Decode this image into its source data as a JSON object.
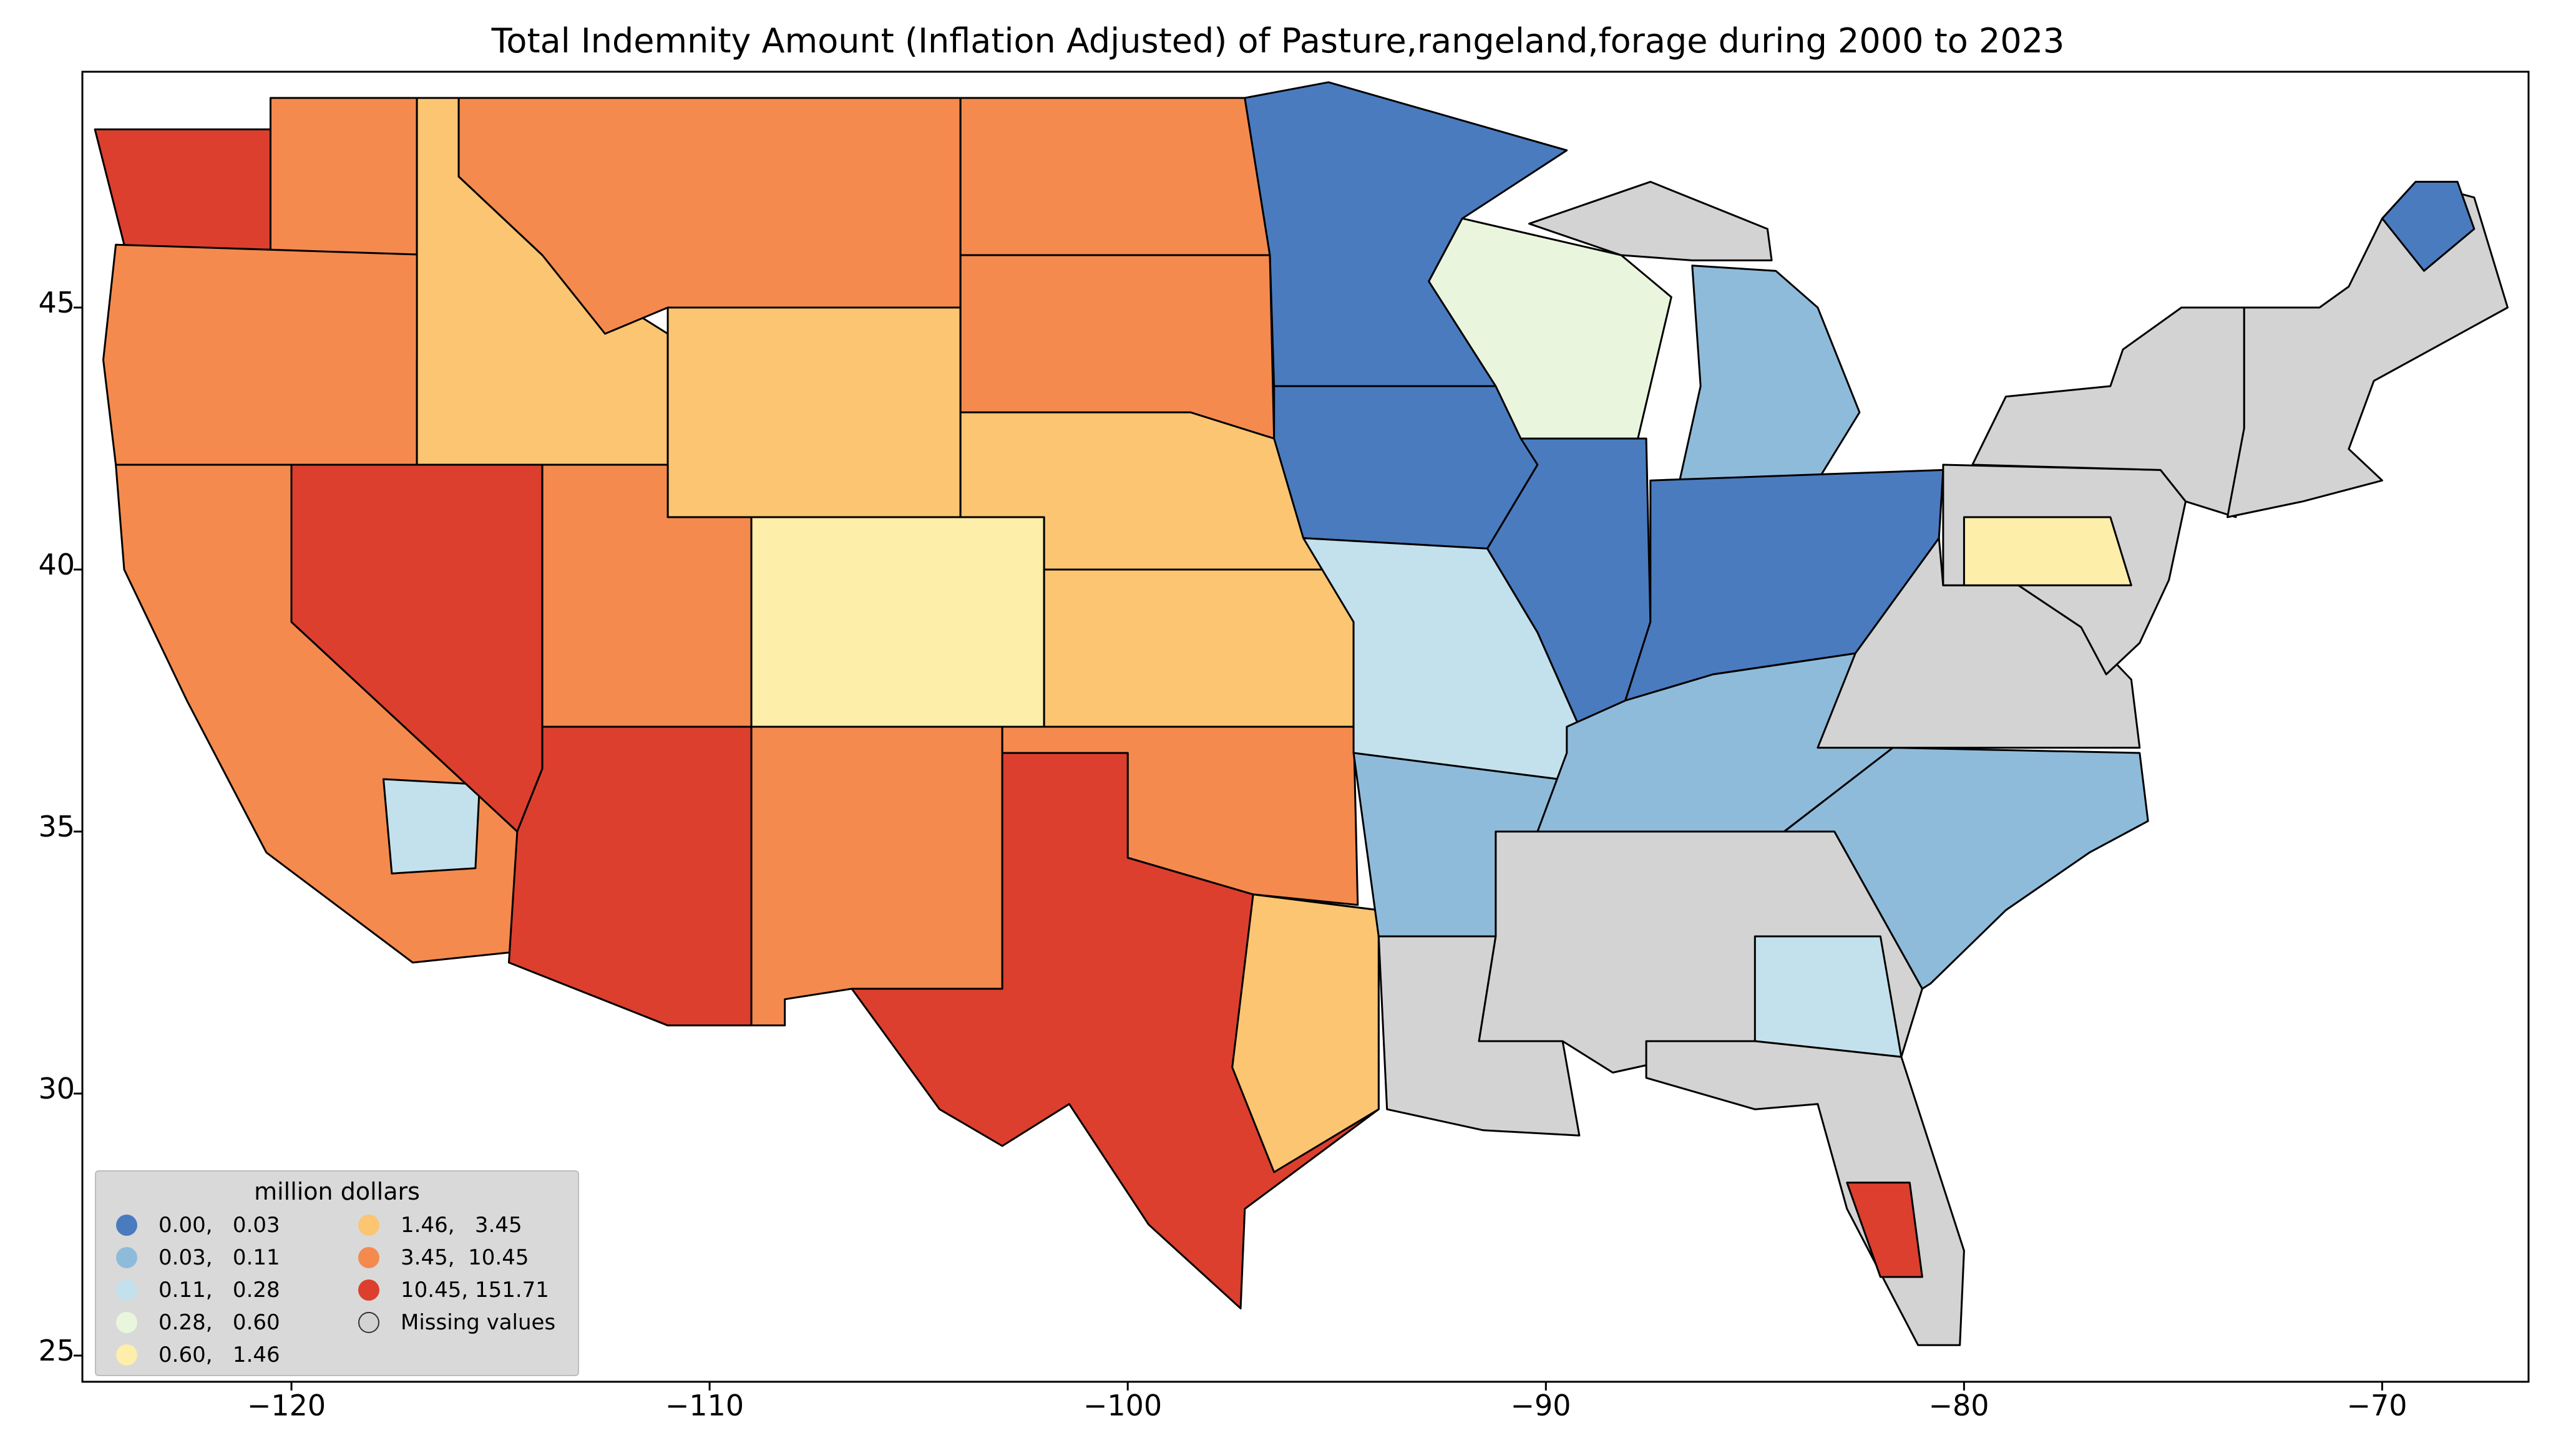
{
  "title": "Total Indemnity Amount  (Inflation Adjusted) of Pasture,rangeland,forage during 2000 to 2023",
  "axes": {
    "x_ticks": [
      "−120",
      "−110",
      "−100",
      "−90",
      "−80",
      "−70"
    ],
    "y_ticks": [
      "45",
      "40",
      "35",
      "30",
      "25"
    ],
    "xlim": [
      -125,
      -66.5
    ],
    "ylim": [
      24.5,
      49.5
    ]
  },
  "legend": {
    "title": "million dollars",
    "items": [
      {
        "label": "0.00,   0.03",
        "color": "#4a7bbf"
      },
      {
        "label": "0.03,   0.11",
        "color": "#8fbbdb"
      },
      {
        "label": "0.11,   0.28",
        "color": "#c3e1ec"
      },
      {
        "label": "0.28,   0.60",
        "color": "#eaf5dd"
      },
      {
        "label": "0.60,   1.46",
        "color": "#fdeeaa"
      },
      {
        "label": "1.46,   3.45",
        "color": "#fcc572"
      },
      {
        "label": "3.45,  10.45",
        "color": "#f58a4e"
      },
      {
        "label": "10.45, 151.71",
        "color": "#dc3f2e"
      },
      {
        "label": "Missing values",
        "color": "#d3d3d3"
      }
    ]
  },
  "regions": [
    {
      "name": "WA-west",
      "bin": 8,
      "pts": [
        [
          -124.7,
          48.4
        ],
        [
          -120.5,
          48.4
        ],
        [
          -120.5,
          45.8
        ],
        [
          -124.0,
          46.2
        ]
      ]
    },
    {
      "name": "WA-central",
      "bin": 7,
      "pts": [
        [
          -120.5,
          49.0
        ],
        [
          -117.0,
          49.0
        ],
        [
          -117.0,
          46.0
        ],
        [
          -120.5,
          45.8
        ]
      ]
    },
    {
      "name": "OR",
      "bin": 7,
      "pts": [
        [
          -124.2,
          46.2
        ],
        [
          -116.5,
          46.0
        ],
        [
          -117.0,
          44.0
        ],
        [
          -117.0,
          42.0
        ],
        [
          -124.2,
          42.0
        ],
        [
          -124.5,
          44.0
        ]
      ]
    },
    {
      "name": "ID",
      "bin": 6,
      "pts": [
        [
          -117.0,
          49.0
        ],
        [
          -116.0,
          49.0
        ],
        [
          -116.0,
          47.5
        ],
        [
          -114.0,
          46.0
        ],
        [
          -111.0,
          44.5
        ],
        [
          -111.0,
          42.0
        ],
        [
          -117.0,
          42.0
        ],
        [
          -117.0,
          46.0
        ]
      ]
    },
    {
      "name": "MT",
      "bin": 7,
      "pts": [
        [
          -116.0,
          49.0
        ],
        [
          -104.0,
          49.0
        ],
        [
          -104.0,
          45.0
        ],
        [
          -111.0,
          45.0
        ],
        [
          -112.5,
          44.5
        ],
        [
          -114.0,
          46.0
        ],
        [
          -116.0,
          47.5
        ]
      ]
    },
    {
      "name": "WY",
      "bin": 6,
      "pts": [
        [
          -111.0,
          45.0
        ],
        [
          -104.0,
          45.0
        ],
        [
          -104.0,
          41.0
        ],
        [
          -111.0,
          41.0
        ]
      ]
    },
    {
      "name": "CA",
      "bin": 7,
      "pts": [
        [
          -124.2,
          42.0
        ],
        [
          -120.0,
          42.0
        ],
        [
          -120.0,
          39.0
        ],
        [
          -114.6,
          35.0
        ],
        [
          -114.7,
          32.7
        ],
        [
          -117.1,
          32.5
        ],
        [
          -120.6,
          34.6
        ],
        [
          -122.5,
          37.5
        ],
        [
          -124.0,
          40.0
        ]
      ]
    },
    {
      "name": "CA-desert",
      "bin": 3,
      "pts": [
        [
          -117.8,
          36.0
        ],
        [
          -115.5,
          35.9
        ],
        [
          -115.6,
          34.3
        ],
        [
          -117.6,
          34.2
        ]
      ]
    },
    {
      "name": "NV",
      "bin": 8,
      "pts": [
        [
          -120.0,
          42.0
        ],
        [
          -114.0,
          42.0
        ],
        [
          -114.0,
          36.2
        ],
        [
          -114.6,
          35.0
        ],
        [
          -120.0,
          39.0
        ]
      ]
    },
    {
      "name": "UT",
      "bin": 7,
      "pts": [
        [
          -114.0,
          42.0
        ],
        [
          -111.0,
          42.0
        ],
        [
          -111.0,
          41.0
        ],
        [
          -109.0,
          41.0
        ],
        [
          -109.0,
          37.0
        ],
        [
          -114.0,
          37.0
        ]
      ]
    },
    {
      "name": "CO",
      "bin": 5,
      "pts": [
        [
          -109.0,
          41.0
        ],
        [
          -102.0,
          41.0
        ],
        [
          -102.0,
          37.0
        ],
        [
          -109.0,
          37.0
        ]
      ]
    },
    {
      "name": "AZ",
      "bin": 8,
      "pts": [
        [
          -114.0,
          37.0
        ],
        [
          -109.0,
          37.0
        ],
        [
          -109.0,
          31.3
        ],
        [
          -111.0,
          31.3
        ],
        [
          -114.8,
          32.5
        ],
        [
          -114.6,
          35.0
        ],
        [
          -114.0,
          36.2
        ]
      ]
    },
    {
      "name": "NM",
      "bin": 7,
      "pts": [
        [
          -109.0,
          37.0
        ],
        [
          -103.0,
          37.0
        ],
        [
          -103.0,
          32.0
        ],
        [
          -106.6,
          32.0
        ],
        [
          -108.2,
          31.8
        ],
        [
          -108.2,
          31.3
        ],
        [
          -109.0,
          31.3
        ]
      ]
    },
    {
      "name": "ND",
      "bin": 7,
      "pts": [
        [
          -104.0,
          49.0
        ],
        [
          -97.2,
          49.0
        ],
        [
          -96.6,
          46.0
        ],
        [
          -104.0,
          46.0
        ]
      ]
    },
    {
      "name": "SD",
      "bin": 7,
      "pts": [
        [
          -104.0,
          46.0
        ],
        [
          -96.6,
          46.0
        ],
        [
          -96.5,
          42.5
        ],
        [
          -98.5,
          43.0
        ],
        [
          -104.0,
          43.0
        ]
      ]
    },
    {
      "name": "NE",
      "bin": 6,
      "pts": [
        [
          -104.0,
          43.0
        ],
        [
          -98.5,
          43.0
        ],
        [
          -96.5,
          42.5
        ],
        [
          -95.3,
          40.0
        ],
        [
          -102.0,
          40.0
        ],
        [
          -102.0,
          41.0
        ],
        [
          -104.0,
          41.0
        ]
      ]
    },
    {
      "name": "KS",
      "bin": 6,
      "pts": [
        [
          -102.0,
          40.0
        ],
        [
          -95.3,
          40.0
        ],
        [
          -94.6,
          39.0
        ],
        [
          -94.6,
          37.0
        ],
        [
          -102.0,
          37.0
        ]
      ]
    },
    {
      "name": "OK",
      "bin": 7,
      "pts": [
        [
          -103.0,
          37.0
        ],
        [
          -94.6,
          37.0
        ],
        [
          -94.5,
          33.6
        ],
        [
          -97.0,
          33.8
        ],
        [
          -100.0,
          34.5
        ],
        [
          -100.0,
          36.5
        ],
        [
          -103.0,
          36.5
        ]
      ]
    },
    {
      "name": "TX",
      "bin": 8,
      "pts": [
        [
          -103.0,
          36.5
        ],
        [
          -100.0,
          36.5
        ],
        [
          -100.0,
          34.5
        ],
        [
          -97.0,
          33.8
        ],
        [
          -94.0,
          33.5
        ],
        [
          -94.0,
          29.7
        ],
        [
          -97.2,
          27.8
        ],
        [
          -97.3,
          25.9
        ],
        [
          -99.5,
          27.5
        ],
        [
          -101.4,
          29.8
        ],
        [
          -103.0,
          29.0
        ],
        [
          -104.5,
          29.7
        ],
        [
          -106.6,
          32.0
        ],
        [
          -103.0,
          32.0
        ]
      ]
    },
    {
      "name": "TX-east",
      "bin": 6,
      "pts": [
        [
          -97.0,
          33.8
        ],
        [
          -94.0,
          33.5
        ],
        [
          -94.0,
          29.7
        ],
        [
          -96.5,
          28.5
        ],
        [
          -97.5,
          30.5
        ]
      ]
    },
    {
      "name": "MN",
      "bin": 1,
      "pts": [
        [
          -97.2,
          49.0
        ],
        [
          -95.2,
          49.3
        ],
        [
          -89.5,
          48.0
        ],
        [
          -92.0,
          46.7
        ],
        [
          -92.8,
          45.5
        ],
        [
          -91.2,
          43.5
        ],
        [
          -96.5,
          43.5
        ],
        [
          -96.6,
          46.0
        ]
      ]
    },
    {
      "name": "IA",
      "bin": 1,
      "pts": [
        [
          -96.5,
          43.5
        ],
        [
          -91.2,
          43.5
        ],
        [
          -90.2,
          42.0
        ],
        [
          -91.4,
          40.4
        ],
        [
          -95.8,
          40.6
        ],
        [
          -96.5,
          42.5
        ]
      ]
    },
    {
      "name": "MO",
      "bin": 3,
      "pts": [
        [
          -95.8,
          40.6
        ],
        [
          -91.4,
          40.4
        ],
        [
          -90.2,
          38.8
        ],
        [
          -89.2,
          37.0
        ],
        [
          -89.7,
          36.0
        ],
        [
          -94.6,
          36.5
        ],
        [
          -94.6,
          39.0
        ]
      ]
    },
    {
      "name": "AR",
      "bin": 2,
      "pts": [
        [
          -94.6,
          36.5
        ],
        [
          -89.7,
          36.0
        ],
        [
          -91.2,
          33.0
        ],
        [
          -94.0,
          33.0
        ]
      ]
    },
    {
      "name": "LA",
      "bin": 9,
      "pts": [
        [
          -94.0,
          33.0
        ],
        [
          -91.2,
          33.0
        ],
        [
          -91.6,
          31.0
        ],
        [
          -89.6,
          31.0
        ],
        [
          -89.2,
          29.2
        ],
        [
          -91.5,
          29.3
        ],
        [
          -93.8,
          29.7
        ]
      ]
    },
    {
      "name": "WI",
      "bin": 4,
      "pts": [
        [
          -92.0,
          46.7
        ],
        [
          -88.2,
          46.0
        ],
        [
          -87.0,
          45.2
        ],
        [
          -87.8,
          42.5
        ],
        [
          -90.6,
          42.5
        ],
        [
          -91.2,
          43.5
        ],
        [
          -92.8,
          45.5
        ]
      ]
    },
    {
      "name": "IL",
      "bin": 1,
      "pts": [
        [
          -90.6,
          42.5
        ],
        [
          -87.6,
          42.5
        ],
        [
          -87.5,
          39.0
        ],
        [
          -88.1,
          37.5
        ],
        [
          -89.2,
          37.0
        ],
        [
          -90.2,
          38.8
        ],
        [
          -91.4,
          40.4
        ],
        [
          -90.2,
          42.0
        ]
      ]
    },
    {
      "name": "MI-lower",
      "bin": 2,
      "pts": [
        [
          -86.5,
          45.8
        ],
        [
          -84.5,
          45.7
        ],
        [
          -83.5,
          45.0
        ],
        [
          -82.5,
          43.0
        ],
        [
          -83.5,
          41.7
        ],
        [
          -86.8,
          41.7
        ],
        [
          -86.3,
          43.5
        ]
      ]
    },
    {
      "name": "MI-upper",
      "bin": 9,
      "pts": [
        [
          -90.4,
          46.6
        ],
        [
          -87.5,
          47.4
        ],
        [
          -84.7,
          46.5
        ],
        [
          -84.6,
          45.9
        ],
        [
          -86.5,
          45.9
        ],
        [
          -88.2,
          46.0
        ]
      ]
    },
    {
      "name": "IN-OH",
      "bin": 1,
      "pts": [
        [
          -87.5,
          41.7
        ],
        [
          -80.5,
          41.9
        ],
        [
          -80.6,
          40.6
        ],
        [
          -82.6,
          38.4
        ],
        [
          -86.0,
          38.0
        ],
        [
          -88.1,
          37.5
        ],
        [
          -87.5,
          39.0
        ]
      ]
    },
    {
      "name": "KY-TN",
      "bin": 2,
      "pts": [
        [
          -89.5,
          36.5
        ],
        [
          -89.5,
          37.0
        ],
        [
          -88.1,
          37.5
        ],
        [
          -86.0,
          38.0
        ],
        [
          -82.6,
          38.4
        ],
        [
          -81.7,
          36.6
        ],
        [
          -84.3,
          35.0
        ],
        [
          -90.2,
          35.0
        ]
      ]
    },
    {
      "name": "MS-AL-GA",
      "bin": 9,
      "pts": [
        [
          -91.2,
          35.0
        ],
        [
          -84.3,
          35.0
        ],
        [
          -83.1,
          35.0
        ],
        [
          -81.0,
          32.0
        ],
        [
          -81.5,
          30.7
        ],
        [
          -85.0,
          31.0
        ],
        [
          -88.4,
          30.4
        ],
        [
          -89.6,
          31.0
        ],
        [
          -91.6,
          31.0
        ],
        [
          -91.2,
          33.0
        ]
      ]
    },
    {
      "name": "GA-south",
      "bin": 3,
      "pts": [
        [
          -85.0,
          33.0
        ],
        [
          -82.0,
          33.0
        ],
        [
          -81.5,
          30.7
        ],
        [
          -85.0,
          31.0
        ]
      ]
    },
    {
      "name": "FL",
      "bin": 9,
      "pts": [
        [
          -87.6,
          31.0
        ],
        [
          -85.0,
          31.0
        ],
        [
          -81.5,
          30.7
        ],
        [
          -80.0,
          27.0
        ],
        [
          -80.1,
          25.2
        ],
        [
          -81.1,
          25.2
        ],
        [
          -82.8,
          27.8
        ],
        [
          -83.5,
          29.8
        ],
        [
          -85.0,
          29.7
        ],
        [
          -87.6,
          30.3
        ]
      ]
    },
    {
      "name": "FL-south",
      "bin": 8,
      "pts": [
        [
          -82.8,
          28.3
        ],
        [
          -81.3,
          28.3
        ],
        [
          -81.0,
          26.5
        ],
        [
          -82.0,
          26.5
        ]
      ]
    },
    {
      "name": "SC-NC",
      "bin": 2,
      "pts": [
        [
          -84.3,
          35.0
        ],
        [
          -81.7,
          36.6
        ],
        [
          -75.8,
          36.5
        ],
        [
          -75.6,
          35.2
        ],
        [
          -77.0,
          34.6
        ],
        [
          -79.0,
          33.5
        ],
        [
          -80.8,
          32.1
        ],
        [
          -81.0,
          32.0
        ],
        [
          -83.1,
          35.0
        ]
      ]
    },
    {
      "name": "VA-WV",
      "bin": 9,
      "pts": [
        [
          -83.5,
          36.6
        ],
        [
          -75.8,
          36.6
        ],
        [
          -76.0,
          37.9
        ],
        [
          -77.2,
          38.9
        ],
        [
          -78.7,
          39.7
        ],
        [
          -80.5,
          39.7
        ],
        [
          -80.6,
          40.6
        ],
        [
          -82.6,
          38.4
        ]
      ]
    },
    {
      "name": "PA-MD",
      "bin": 9,
      "pts": [
        [
          -80.5,
          42.0
        ],
        [
          -75.3,
          41.9
        ],
        [
          -74.7,
          41.3
        ],
        [
          -75.1,
          39.8
        ],
        [
          -75.8,
          38.6
        ],
        [
          -76.6,
          38.0
        ],
        [
          -77.2,
          38.9
        ],
        [
          -78.7,
          39.7
        ],
        [
          -80.5,
          39.7
        ]
      ]
    },
    {
      "name": "PA-south",
      "bin": 5,
      "pts": [
        [
          -80.0,
          41.0
        ],
        [
          -76.5,
          41.0
        ],
        [
          -76.0,
          39.7
        ],
        [
          -80.0,
          39.7
        ]
      ]
    },
    {
      "name": "NY",
      "bin": 9,
      "pts": [
        [
          -79.8,
          42.0
        ],
        [
          -79.0,
          43.3
        ],
        [
          -76.5,
          43.5
        ],
        [
          -76.2,
          44.2
        ],
        [
          -74.8,
          45.0
        ],
        [
          -73.3,
          45.0
        ],
        [
          -73.3,
          42.7
        ],
        [
          -73.5,
          41.0
        ],
        [
          -74.7,
          41.3
        ],
        [
          -75.3,
          41.9
        ]
      ]
    },
    {
      "name": "NE-states",
      "bin": 9,
      "pts": [
        [
          -73.3,
          45.0
        ],
        [
          -71.5,
          45.0
        ],
        [
          -70.8,
          45.4
        ],
        [
          -70.0,
          46.7
        ],
        [
          -69.2,
          47.4
        ],
        [
          -67.8,
          47.1
        ],
        [
          -67.0,
          45.0
        ],
        [
          -70.2,
          43.6
        ],
        [
          -70.8,
          42.3
        ],
        [
          -70.0,
          41.7
        ],
        [
          -71.9,
          41.3
        ],
        [
          -73.7,
          41.0
        ],
        [
          -73.3,
          42.7
        ]
      ]
    },
    {
      "name": "ME-north",
      "bin": 1,
      "pts": [
        [
          -70.0,
          46.7
        ],
        [
          -69.2,
          47.4
        ],
        [
          -68.2,
          47.4
        ],
        [
          -67.8,
          46.5
        ],
        [
          -69.0,
          45.7
        ]
      ]
    }
  ]
}
